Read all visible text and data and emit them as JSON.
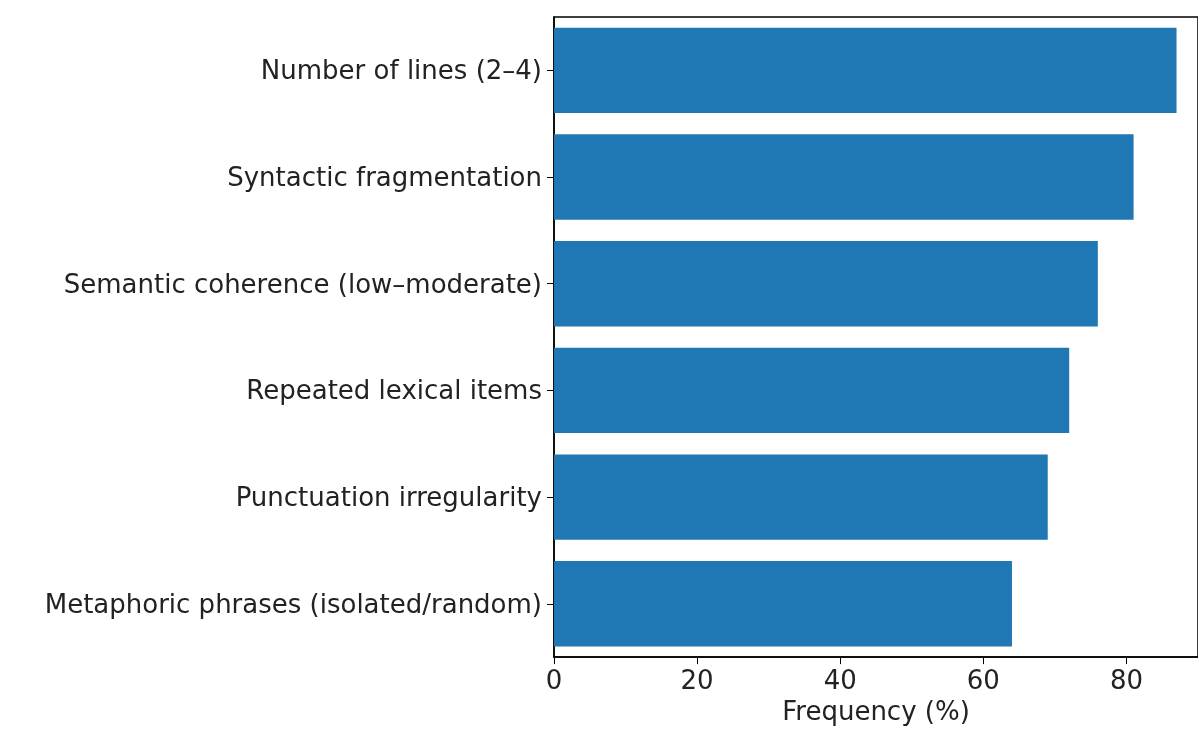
{
  "chart_data": {
    "type": "bar",
    "orientation": "horizontal",
    "xlabel": "Frequency (%)",
    "categories": [
      "Number of lines (2–4)",
      "Syntactic fragmentation",
      "Semantic coherence (low–moderate)",
      "Repeated lexical items",
      "Punctuation irregularity",
      "Metaphoric phrases (isolated/random)"
    ],
    "values": [
      87,
      81,
      76,
      72,
      69,
      64
    ],
    "color": "#1f77b4",
    "xlim": [
      0,
      90
    ],
    "xticks": [
      0,
      20,
      40,
      60,
      80
    ],
    "grid": false
  }
}
